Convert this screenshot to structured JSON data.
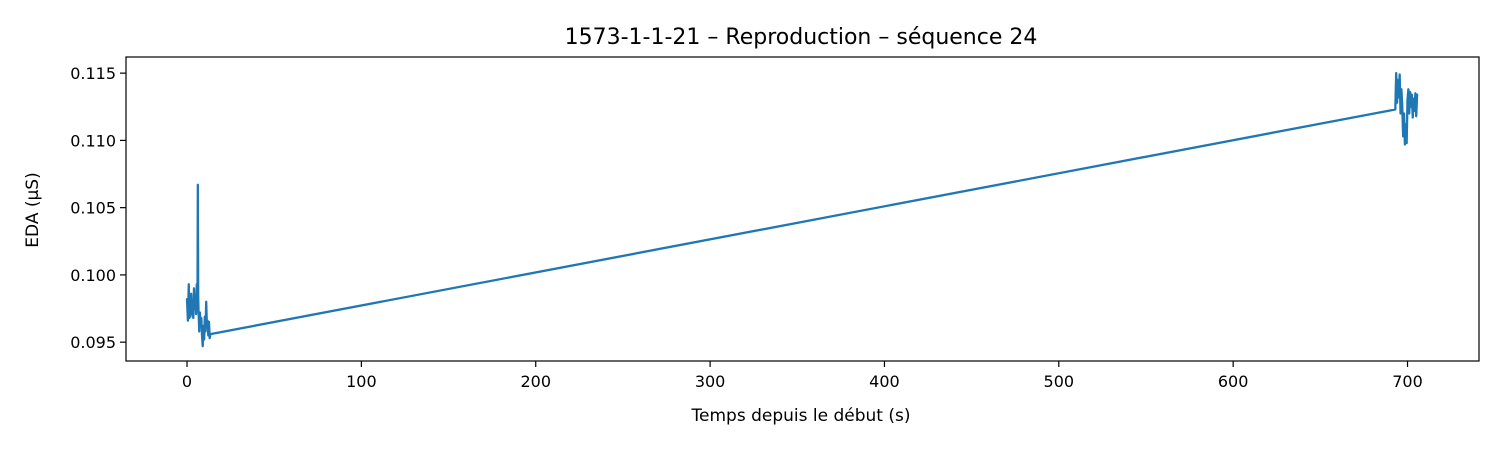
{
  "chart_data": {
    "type": "line",
    "title": "1573-1-1-21 – Reproduction – séquence 24",
    "xlabel": "Temps depuis le début (s)",
    "ylabel": "EDA (µS)",
    "xlim": [
      -35,
      741
    ],
    "ylim": [
      0.0936,
      0.1162
    ],
    "xticks": [
      0,
      100,
      200,
      300,
      400,
      500,
      600,
      700
    ],
    "xtick_labels": [
      "0",
      "100",
      "200",
      "300",
      "400",
      "500",
      "600",
      "700"
    ],
    "yticks": [
      0.095,
      0.1,
      0.105,
      0.11,
      0.115
    ],
    "ytick_labels": [
      "0.095",
      "0.100",
      "0.105",
      "0.110",
      "0.115"
    ],
    "grid": false,
    "legend": "none",
    "series": [
      {
        "color": "#1f77b4",
        "x": [
          0.0,
          0.5,
          1.0,
          1.3,
          1.6,
          2.0,
          2.4,
          2.8,
          3.2,
          3.6,
          4.0,
          4.4,
          4.8,
          5.2,
          5.6,
          6.0,
          6.2,
          6.4,
          6.6,
          6.8,
          7.0,
          7.4,
          7.8,
          8.2,
          8.6,
          9.0,
          9.4,
          9.8,
          10.2,
          10.6,
          11.0,
          11.4,
          11.8,
          12.2,
          12.6,
          13.0,
          13.4,
          693.0,
          693.5,
          694.0,
          694.5,
          695.0,
          695.5,
          696.0,
          696.5,
          697.0,
          697.5,
          698.0,
          698.5,
          699.0,
          699.5,
          700.0,
          700.5,
          701.0,
          701.5,
          702.0,
          702.5,
          703.0,
          703.5,
          704.0,
          704.5,
          705.0,
          705.5
        ],
        "y": [
          0.0982,
          0.0966,
          0.0993,
          0.0968,
          0.0978,
          0.0969,
          0.0986,
          0.0971,
          0.0977,
          0.0968,
          0.099,
          0.0975,
          0.0985,
          0.0971,
          0.0993,
          0.098,
          0.1067,
          0.0985,
          0.0972,
          0.0967,
          0.0958,
          0.0972,
          0.0962,
          0.0968,
          0.0955,
          0.0947,
          0.0962,
          0.0952,
          0.0969,
          0.0958,
          0.098,
          0.0962,
          0.0966,
          0.0955,
          0.0965,
          0.0953,
          0.0956,
          0.1123,
          0.115,
          0.1128,
          0.1145,
          0.1132,
          0.1149,
          0.112,
          0.1138,
          0.1125,
          0.1103,
          0.112,
          0.1097,
          0.1112,
          0.1098,
          0.113,
          0.1138,
          0.112,
          0.1136,
          0.1125,
          0.1134,
          0.1117,
          0.1131,
          0.1122,
          0.1135,
          0.1118,
          0.1134
        ]
      }
    ]
  }
}
